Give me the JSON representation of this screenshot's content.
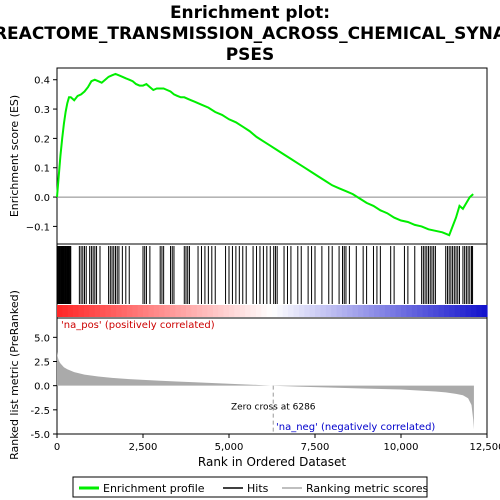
{
  "chart_data": [
    {
      "type": "line",
      "title": "Enrichment plot: REACTOME_TRANSMISSION_ACROSS_CHEMICAL_SYNAPSES",
      "title_lines": [
        "Enrichment plot:",
        "REACTOME_TRANSMISSION_ACROSS_CHEMICAL_SYNA",
        "PSES"
      ],
      "ylabel": "Enrichment score (ES)",
      "ylim": [
        -0.16,
        0.44
      ],
      "yticks": [
        -0.1,
        0.0,
        0.1,
        0.2,
        0.3,
        0.4
      ],
      "ytick_labels": [
        "−0.1",
        "0.0",
        "0.1",
        "0.2",
        "0.3",
        "0.4"
      ],
      "line_color": "#00ee00",
      "series": [
        {
          "name": "Enrichment profile",
          "x": [
            0,
            50,
            100,
            150,
            200,
            250,
            300,
            350,
            400,
            500,
            600,
            700,
            800,
            900,
            1000,
            1100,
            1200,
            1300,
            1400,
            1500,
            1600,
            1700,
            1800,
            1900,
            2000,
            2100,
            2200,
            2300,
            2400,
            2500,
            2600,
            2700,
            2800,
            2900,
            3000,
            3100,
            3200,
            3300,
            3400,
            3500,
            3600,
            3700,
            3800,
            3900,
            4000,
            4200,
            4400,
            4600,
            4800,
            5000,
            5200,
            5400,
            5600,
            5800,
            6000,
            6200,
            6400,
            6600,
            6800,
            7000,
            7200,
            7400,
            7600,
            7800,
            8000,
            8200,
            8400,
            8600,
            8800,
            9000,
            9200,
            9400,
            9600,
            9800,
            10000,
            10200,
            10400,
            10600,
            10800,
            11000,
            11200,
            11300,
            11400,
            11500,
            11600,
            11700,
            11800,
            11900,
            12000,
            12100
          ],
          "y": [
            0.0,
            0.07,
            0.14,
            0.2,
            0.25,
            0.29,
            0.32,
            0.34,
            0.34,
            0.33,
            0.345,
            0.35,
            0.36,
            0.375,
            0.395,
            0.4,
            0.395,
            0.39,
            0.4,
            0.41,
            0.415,
            0.42,
            0.415,
            0.41,
            0.405,
            0.4,
            0.395,
            0.385,
            0.38,
            0.38,
            0.385,
            0.375,
            0.365,
            0.37,
            0.37,
            0.37,
            0.365,
            0.36,
            0.35,
            0.345,
            0.34,
            0.34,
            0.335,
            0.33,
            0.325,
            0.315,
            0.305,
            0.29,
            0.28,
            0.265,
            0.255,
            0.24,
            0.225,
            0.205,
            0.19,
            0.175,
            0.16,
            0.145,
            0.13,
            0.115,
            0.1,
            0.085,
            0.07,
            0.055,
            0.04,
            0.03,
            0.02,
            0.01,
            -0.005,
            -0.02,
            -0.03,
            -0.045,
            -0.055,
            -0.07,
            -0.08,
            -0.085,
            -0.095,
            -0.1,
            -0.11,
            -0.115,
            -0.12,
            -0.125,
            -0.13,
            -0.1,
            -0.07,
            -0.03,
            -0.04,
            -0.02,
            0.0,
            0.01
          ]
        }
      ]
    },
    {
      "type": "hits",
      "name": "Hits",
      "hit_color": "#000000",
      "positions": [
        20,
        40,
        60,
        80,
        100,
        120,
        140,
        160,
        180,
        200,
        220,
        240,
        260,
        280,
        300,
        320,
        340,
        360,
        380,
        400,
        650,
        700,
        750,
        800,
        850,
        950,
        1000,
        1050,
        1100,
        1150,
        1250,
        1500,
        1550,
        1600,
        1650,
        1700,
        1750,
        1800,
        1900,
        2000,
        2100,
        2500,
        2550,
        2600,
        2700,
        3000,
        3050,
        3100,
        3300,
        3350,
        3400,
        3700,
        3750,
        3800,
        3850,
        4100,
        4200,
        4300,
        4400,
        4500,
        4600,
        4900,
        5000,
        5100,
        5200,
        5300,
        5400,
        5500,
        5700,
        5800,
        5900,
        6000,
        6100,
        6200,
        6300,
        6350,
        6400,
        6600,
        6700,
        6800,
        7000,
        7100,
        7300,
        7400,
        7500,
        7700,
        7900,
        8000,
        8200,
        8300,
        8350,
        8400,
        8500,
        8700,
        8900,
        9000,
        9200,
        9300,
        9400,
        9700,
        9800,
        10100,
        10200,
        10400,
        10600,
        10650,
        10700,
        10750,
        10800,
        10850,
        10900,
        10950,
        11000,
        11300,
        11350,
        11400,
        11450,
        11500,
        11550,
        11600,
        11650,
        11700,
        11800,
        11850,
        11900,
        11950,
        12000,
        12050,
        12080
      ]
    },
    {
      "type": "area",
      "name": "Ranking metric scores",
      "xlabel": "Rank in Ordered Dataset",
      "ylabel": "Ranked list metric (PreRanked)",
      "ylim": [
        -5.0,
        7.0
      ],
      "yticks": [
        -5.0,
        -2.5,
        0.0,
        2.5,
        5.0
      ],
      "ytick_labels": [
        "-5.0",
        "-2.5",
        "0.0",
        "2.5",
        "5.0"
      ],
      "xlim": [
        0,
        12500
      ],
      "xticks": [
        0,
        2500,
        5000,
        7500,
        10000,
        12500
      ],
      "xtick_labels": [
        "0",
        "2,500",
        "5,000",
        "7,500",
        "10,000",
        "12,500"
      ],
      "fill_color": "#aaaaaa",
      "x": [
        0,
        20,
        50,
        100,
        200,
        300,
        500,
        800,
        1200,
        1600,
        2000,
        3000,
        4000,
        5000,
        6000,
        6286,
        7000,
        8000,
        9000,
        10000,
        10500,
        11000,
        11300,
        11600,
        11800,
        11950,
        12050,
        12100,
        12120
      ],
      "values": [
        3.5,
        3.0,
        2.6,
        2.3,
        1.9,
        1.7,
        1.4,
        1.15,
        0.95,
        0.8,
        0.7,
        0.5,
        0.35,
        0.2,
        0.05,
        0.0,
        -0.1,
        -0.2,
        -0.3,
        -0.4,
        -0.5,
        -0.6,
        -0.7,
        -0.85,
        -1.0,
        -1.3,
        -2.0,
        -3.5,
        -4.5
      ],
      "zero_cross_label": "Zero cross at 6286",
      "zero_cross": 6286,
      "pos_label": "'na_pos' (positively correlated)",
      "neg_label": "'na_neg' (negatively correlated)",
      "pos_color": "#cc0000",
      "neg_color": "#0000cc"
    }
  ],
  "legend": {
    "placement": "bottom",
    "items": [
      {
        "label": "Enrichment profile",
        "color": "#00ee00"
      },
      {
        "label": "Hits",
        "color": "#000000"
      },
      {
        "label": "Ranking metric scores",
        "color": "#aaaaaa"
      }
    ]
  }
}
